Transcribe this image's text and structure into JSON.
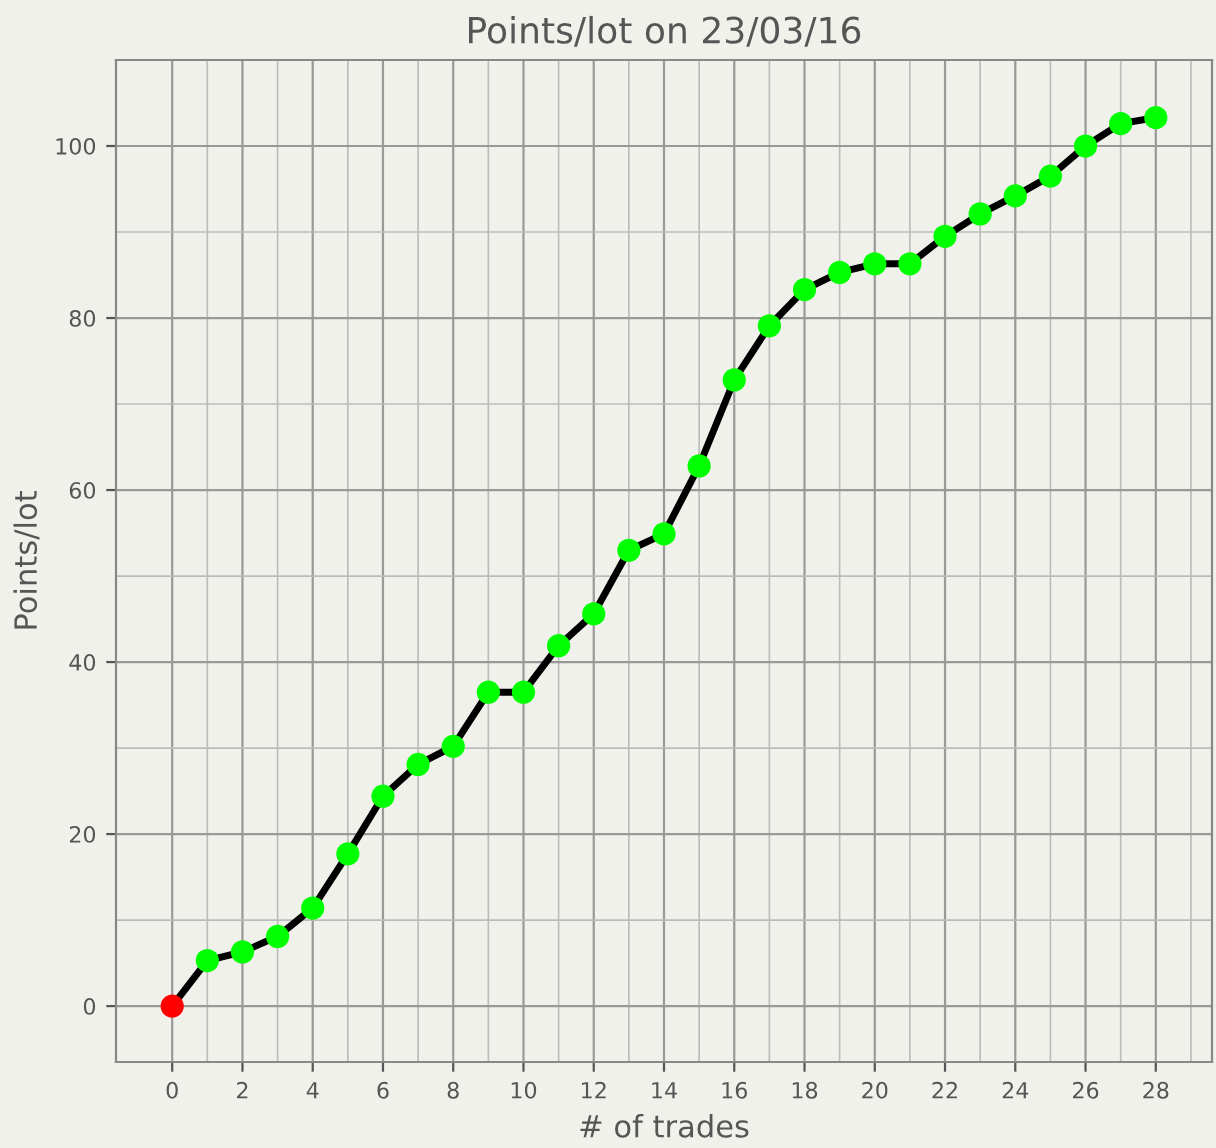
{
  "chart_data": {
    "type": "line",
    "title": "Points/lot on 23/03/16",
    "xlabel": "# of trades",
    "ylabel": "Points/lot",
    "x": [
      0,
      1,
      2,
      3,
      4,
      5,
      6,
      7,
      8,
      9,
      10,
      11,
      12,
      13,
      14,
      15,
      16,
      17,
      18,
      19,
      20,
      21,
      22,
      23,
      24,
      25,
      26,
      27,
      28
    ],
    "series": [
      {
        "color": "#000000",
        "values": [
          0,
          5.3,
          6.3,
          8.1,
          11.4,
          17.7,
          24.4,
          28.1,
          30.2,
          36.5,
          36.5,
          41.9,
          45.6,
          53.0,
          54.9,
          62.8,
          72.8,
          79.1,
          83.3,
          85.3,
          86.3,
          86.3,
          89.5,
          92.1,
          94.2,
          96.5,
          100,
          102.6,
          103.3
        ],
        "colors": [
          "#ff0000",
          "#00ff00",
          "#00ff00",
          "#00ff00",
          "#00ff00",
          "#00ff00",
          "#00ff00",
          "#00ff00",
          "#00ff00",
          "#00ff00",
          "#00ff00",
          "#00ff00",
          "#00ff00",
          "#00ff00",
          "#00ff00",
          "#00ff00",
          "#00ff00",
          "#00ff00",
          "#00ff00",
          "#00ff00",
          "#00ff00",
          "#00ff00",
          "#00ff00",
          "#00ff00",
          "#00ff00",
          "#00ff00",
          "#00ff00",
          "#00ff00",
          "#00ff00"
        ]
      }
    ],
    "marker": "circle",
    "line_style": "solid",
    "xlim": [
      -1.6,
      29.6
    ],
    "ylim": [
      -6.5,
      110
    ],
    "xticks": [
      0,
      2,
      4,
      6,
      8,
      10,
      12,
      14,
      16,
      18,
      20,
      22,
      24,
      26,
      28
    ],
    "yticks": [
      0,
      20,
      40,
      60,
      80,
      100
    ],
    "grid": true
  }
}
